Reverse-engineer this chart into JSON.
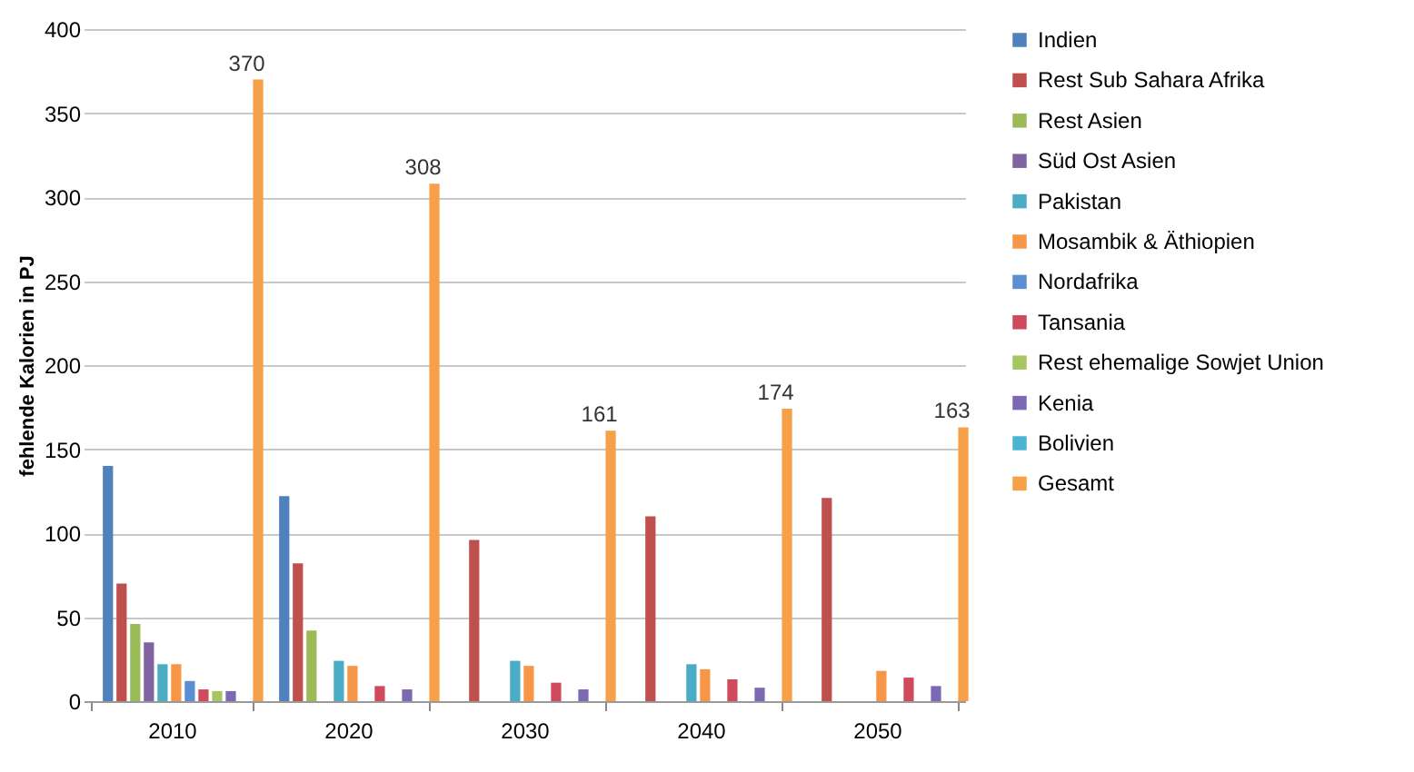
{
  "chart_data": {
    "type": "bar",
    "ylabel": "fehlende Kalorien in PJ",
    "categories": [
      "2010",
      "2020",
      "2030",
      "2040",
      "2050"
    ],
    "ylim": [
      0,
      400
    ],
    "yticks": [
      0,
      50,
      100,
      150,
      200,
      250,
      300,
      350,
      400
    ],
    "grid": "y",
    "legend": "right",
    "series": [
      {
        "name": "Indien",
        "color": "#4f81bd",
        "values": [
          140,
          122,
          null,
          null,
          null
        ]
      },
      {
        "name": "Rest Sub Sahara Afrika",
        "color": "#c0504d",
        "values": [
          70,
          82,
          96,
          110,
          121
        ]
      },
      {
        "name": "Rest Asien",
        "color": "#9bbb59",
        "values": [
          46,
          42,
          null,
          null,
          null
        ]
      },
      {
        "name": "Süd Ost Asien",
        "color": "#8064a2",
        "values": [
          35,
          null,
          null,
          null,
          null
        ]
      },
      {
        "name": "Pakistan",
        "color": "#4bacc6",
        "values": [
          22,
          24,
          24,
          22,
          null
        ]
      },
      {
        "name": "Mosambik & Äthiopien",
        "color": "#f79646",
        "values": [
          22,
          21,
          21,
          19,
          18
        ]
      },
      {
        "name": "Nordafrika",
        "color": "#5b8ed3",
        "values": [
          12,
          null,
          null,
          null,
          null
        ]
      },
      {
        "name": "Tansania",
        "color": "#d04a5e",
        "values": [
          7,
          9,
          11,
          13,
          14
        ]
      },
      {
        "name": "Rest ehemalige Sowjet Union",
        "color": "#a9c562",
        "values": [
          6,
          null,
          null,
          null,
          null
        ]
      },
      {
        "name": "Kenia",
        "color": "#7d68b4",
        "values": [
          6,
          7,
          7,
          8,
          9
        ]
      },
      {
        "name": "Bolivien",
        "color": "#4bb4d0",
        "values": [
          null,
          null,
          null,
          null,
          null
        ]
      },
      {
        "name": "Gesamt",
        "color": "#f7a04a",
        "values": [
          370,
          308,
          161,
          174,
          163
        ],
        "value_labels": [
          "370",
          "308",
          "161",
          "174",
          "163"
        ]
      }
    ]
  }
}
